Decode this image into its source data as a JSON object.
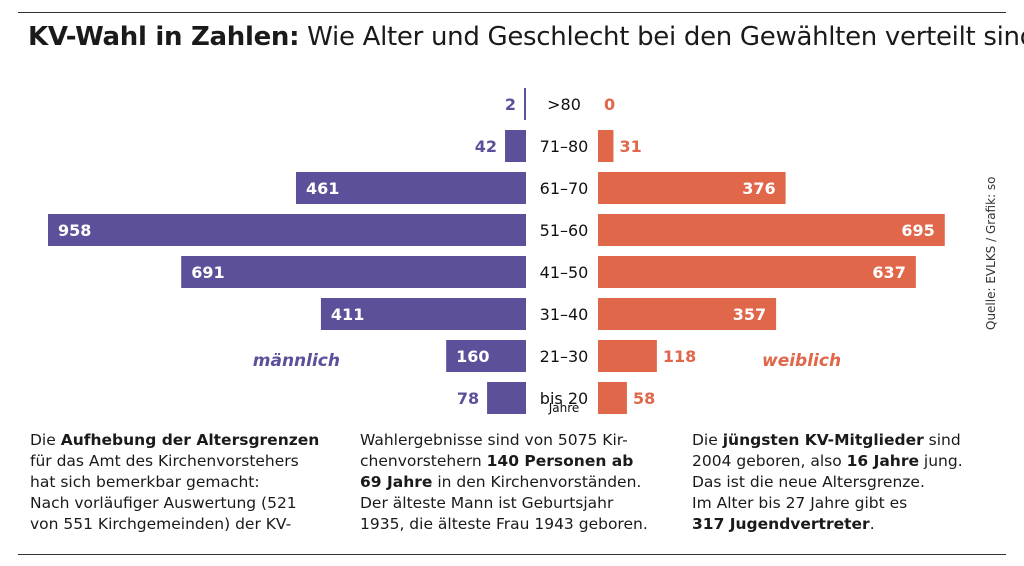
{
  "title": {
    "bold": "KV-Wahl in Zahlen:",
    "rest": " Wie Alter und Geschlecht bei den Gewählten verteilt sind"
  },
  "chart_data": {
    "type": "bar",
    "orientation": "horizontal-population-pyramid",
    "categories": [
      ">80",
      "71–80",
      "61–70",
      "51–60",
      "41–50",
      "31–40",
      "21–30",
      "bis 20"
    ],
    "series": [
      {
        "name": "männlich",
        "values": [
          2,
          42,
          461,
          958,
          691,
          411,
          160,
          78
        ],
        "color": "#5b5099"
      },
      {
        "name": "weiblich",
        "values": [
          0,
          31,
          376,
          695,
          637,
          357,
          118,
          58
        ],
        "color": "#e0674a"
      }
    ],
    "axis_unit_label": "Jahre",
    "xlim": [
      0,
      958
    ]
  },
  "source": "Quelle: EVLKS / Grafik: so",
  "columns": [
    {
      "lines": [
        [
          {
            "t": "Die "
          },
          {
            "t": "Aufhebung der Altersgrenzen",
            "b": true
          }
        ],
        [
          {
            "t": "für das Amt des Kirchenvorstehers"
          }
        ],
        [
          {
            "t": "hat sich bemerkbar gemacht:"
          }
        ],
        [
          {
            "t": "Nach vorläufiger Auswertung (521"
          }
        ],
        [
          {
            "t": "von 551 Kirchgemeinden) der KV-"
          }
        ]
      ]
    },
    {
      "lines": [
        [
          {
            "t": "Wahlergebnisse sind von 5075 Kir-"
          }
        ],
        [
          {
            "t": "chenvorstehern "
          },
          {
            "t": "140 Personen ab",
            "b": true
          }
        ],
        [
          {
            "t": "69 Jahre",
            "b": true
          },
          {
            "t": " in den Kirchenvorständen."
          }
        ],
        [
          {
            "t": "Der älteste Mann ist Geburtsjahr"
          }
        ],
        [
          {
            "t": "1935, die älteste Frau 1943 geboren."
          }
        ]
      ]
    },
    {
      "lines": [
        [
          {
            "t": "Die "
          },
          {
            "t": "jüngsten KV-Mitglieder",
            "b": true
          },
          {
            "t": " sind"
          }
        ],
        [
          {
            "t": "2004 geboren, also "
          },
          {
            "t": "16 Jahre",
            "b": true
          },
          {
            "t": " jung."
          }
        ],
        [
          {
            "t": "Das ist die neue Altersgrenze."
          }
        ],
        [
          {
            "t": "Im Alter bis 27 Jahre gibt es"
          }
        ],
        [
          {
            "t": "317 Jugendvertreter",
            "b": true
          },
          {
            "t": "."
          }
        ]
      ]
    }
  ]
}
